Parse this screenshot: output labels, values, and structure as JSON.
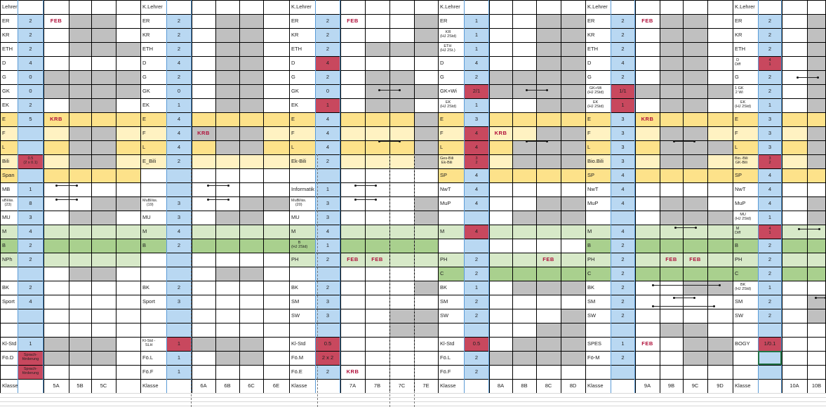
{
  "colors": {
    "blue": "#b9d8f2",
    "grey": "#c0c0c0",
    "red": "#c8485e",
    "orange": "#fde28a",
    "cream": "#fff2c2",
    "green": "#a9d08e",
    "lightgreen": "#d7e9c8",
    "white": "#ffffff"
  },
  "header_label": "K.Lehrer",
  "class_row_label": "Klasse",
  "blocks": [
    {
      "id": "5",
      "header": "Lehrer",
      "classes": [
        "5A",
        "5B",
        "5C",
        ""
      ],
      "rows": [
        {
          "subject": "ER",
          "hours": "2",
          "notes": [
            "FEB",
            "",
            "",
            "",
            ""
          ]
        },
        {
          "subject": "KR",
          "hours": "2"
        },
        {
          "subject": "ETH",
          "hours": "2"
        },
        {
          "subject": "D",
          "hours": "4"
        },
        {
          "subject": "G",
          "hours": "0"
        },
        {
          "subject": "GK",
          "hours": "0"
        },
        {
          "subject": "EK",
          "hours": "2"
        },
        {
          "subject": "E",
          "hours": "5",
          "notes": [
            "KRB",
            "",
            "",
            "",
            ""
          ]
        },
        {
          "subject": "F",
          "hours": ""
        },
        {
          "subject": "L",
          "hours": ""
        },
        {
          "subject": "Bili",
          "hours": "0.5\n(2 x 0.1)"
        },
        {
          "subject": "Span",
          "hours": ""
        },
        {
          "subject": "MB",
          "hours": "1"
        },
        {
          "subject": "uBl/äs.\n(23)",
          "hours": "8"
        },
        {
          "subject": "MU",
          "hours": "3"
        },
        {
          "subject": "M",
          "hours": "4"
        },
        {
          "subject": "B",
          "hours": "2"
        },
        {
          "subject": "NPh",
          "hours": "2"
        },
        {
          "subject": "",
          "hours": ""
        },
        {
          "subject": "BK",
          "hours": "2"
        },
        {
          "subject": "Sport",
          "hours": "4"
        },
        {
          "subject": "",
          "hours": ""
        },
        {
          "subject": "",
          "hours": ""
        },
        {
          "subject": "Kl-Std",
          "hours": "1"
        },
        {
          "subject": "Fö.D",
          "hours": "Sprach-\nförderung"
        },
        {
          "subject": "",
          "hours": "Sprach-\nförderung"
        }
      ]
    },
    {
      "id": "6",
      "header": "K.Lehrer",
      "classes": [
        "6A",
        "6B",
        "6C",
        "6E"
      ],
      "rows": [
        {
          "subject": "ER",
          "hours": "2"
        },
        {
          "subject": "KR",
          "hours": "2"
        },
        {
          "subject": "ETH",
          "hours": "2"
        },
        {
          "subject": "D",
          "hours": "4"
        },
        {
          "subject": "G",
          "hours": "2"
        },
        {
          "subject": "GK",
          "hours": "0"
        },
        {
          "subject": "EK",
          "hours": "1"
        },
        {
          "subject": "E",
          "hours": "4"
        },
        {
          "subject": "F",
          "hours": "4",
          "notes": [
            "KRB",
            "",
            "",
            "",
            ""
          ]
        },
        {
          "subject": "L",
          "hours": "4"
        },
        {
          "subject": "E_Bili",
          "hours": "2"
        },
        {
          "subject": "",
          "hours": ""
        },
        {
          "subject": "",
          "hours": ""
        },
        {
          "subject": "MuBl/äs.\n(19)",
          "hours": "3"
        },
        {
          "subject": "MU",
          "hours": "3"
        },
        {
          "subject": "M",
          "hours": "4"
        },
        {
          "subject": "B",
          "hours": "2"
        },
        {
          "subject": "",
          "hours": ""
        },
        {
          "subject": "",
          "hours": ""
        },
        {
          "subject": "BK",
          "hours": "2"
        },
        {
          "subject": "Sport",
          "hours": "3"
        },
        {
          "subject": "",
          "hours": ""
        },
        {
          "subject": "",
          "hours": ""
        },
        {
          "subject": "Kl-Std -\nSLH",
          "hours": "1"
        },
        {
          "subject": "Fö.L",
          "hours": "1"
        },
        {
          "subject": "Fö.F",
          "hours": "1"
        }
      ]
    },
    {
      "id": "7",
      "header": "K.Lehrer",
      "classes": [
        "7A",
        "7B",
        "7C",
        "7E"
      ],
      "rows": [
        {
          "subject": "ER",
          "hours": "2",
          "notes": [
            "FEB",
            "",
            "",
            "",
            ""
          ]
        },
        {
          "subject": "KR",
          "hours": "2"
        },
        {
          "subject": "ETH",
          "hours": "2"
        },
        {
          "subject": "D",
          "hours": "4"
        },
        {
          "subject": "G",
          "hours": "2"
        },
        {
          "subject": "GK",
          "hours": "0"
        },
        {
          "subject": "EK",
          "hours": "1"
        },
        {
          "subject": "E",
          "hours": "4"
        },
        {
          "subject": "F",
          "hours": "4"
        },
        {
          "subject": "L",
          "hours": "4"
        },
        {
          "subject": "Ek-Bili",
          "hours": "2"
        },
        {
          "subject": "",
          "hours": ""
        },
        {
          "subject": "Informatik",
          "hours": "1"
        },
        {
          "subject": "MuBl/äs.\n(20)",
          "hours": "3"
        },
        {
          "subject": "MU",
          "hours": "3"
        },
        {
          "subject": "M",
          "hours": "4"
        },
        {
          "subject": "B\n(HJ 2Std)",
          "hours": "1"
        },
        {
          "subject": "PH",
          "hours": "2",
          "notes": [
            "FEB",
            "FEB",
            "",
            "",
            ""
          ]
        },
        {
          "subject": "",
          "hours": ""
        },
        {
          "subject": "BK",
          "hours": "2"
        },
        {
          "subject": "SM",
          "hours": "3"
        },
        {
          "subject": "SW",
          "hours": "3"
        },
        {
          "subject": "",
          "hours": ""
        },
        {
          "subject": "Kl-Std",
          "hours": "0.5"
        },
        {
          "subject": "Fö.M",
          "hours": "2 x 2"
        },
        {
          "subject": "Fö.E",
          "hours": "2",
          "notes": [
            "KRB",
            "",
            "",
            "",
            ""
          ]
        }
      ]
    },
    {
      "id": "8",
      "header": "K.Lehrer",
      "classes": [
        "8A",
        "8B",
        "8C",
        "8D"
      ],
      "rows": [
        {
          "subject": "ER",
          "hours": "1"
        },
        {
          "subject": "KR\n(HJ 2Std)",
          "hours": "1"
        },
        {
          "subject": "ETH\n(HJ 2St.)",
          "hours": "1"
        },
        {
          "subject": "D",
          "hours": "4"
        },
        {
          "subject": "G",
          "hours": "2"
        },
        {
          "subject": "GK+Wi",
          "hours": "2/1"
        },
        {
          "subject": "EK\n(HJ 2Std)",
          "hours": "1"
        },
        {
          "subject": "E",
          "hours": "3"
        },
        {
          "subject": "F",
          "hours": "4",
          "notes": [
            "KRB",
            "",
            "",
            "",
            ""
          ]
        },
        {
          "subject": "L",
          "hours": "4"
        },
        {
          "subject": "Ges-Bili\nEk-Bili",
          "hours": "3\n2"
        },
        {
          "subject": "SP",
          "hours": "4"
        },
        {
          "subject": "NwT",
          "hours": "4"
        },
        {
          "subject": "MuP",
          "hours": "4"
        },
        {
          "subject": "",
          "hours": ""
        },
        {
          "subject": "M",
          "hours": "4"
        },
        {
          "subject": "",
          "hours": ""
        },
        {
          "subject": "PH",
          "hours": "2",
          "notes": [
            "",
            "",
            "FEB",
            "",
            ""
          ]
        },
        {
          "subject": "C",
          "hours": "2"
        },
        {
          "subject": "BK",
          "hours": "1"
        },
        {
          "subject": "SM",
          "hours": "2"
        },
        {
          "subject": "SW",
          "hours": "2"
        },
        {
          "subject": "",
          "hours": ""
        },
        {
          "subject": "Kl-Std",
          "hours": "0.5"
        },
        {
          "subject": "Fö.L",
          "hours": "2"
        },
        {
          "subject": "Fö.F",
          "hours": "2"
        }
      ]
    },
    {
      "id": "9",
      "header": "K.Lehrer",
      "classes": [
        "9A",
        "9B",
        "9C",
        "9D"
      ],
      "rows": [
        {
          "subject": "ER",
          "hours": "2",
          "notes": [
            "FEB",
            "",
            "",
            "",
            ""
          ]
        },
        {
          "subject": "KR",
          "hours": "2"
        },
        {
          "subject": "ETH",
          "hours": "2"
        },
        {
          "subject": "D",
          "hours": "4"
        },
        {
          "subject": "G",
          "hours": "2"
        },
        {
          "subject": "GK+Wi\n(HJ 2Std)",
          "hours": "1/1"
        },
        {
          "subject": "EK\n(HJ 2Std)",
          "hours": "1"
        },
        {
          "subject": "E",
          "hours": "3",
          "notes": [
            "KRB",
            "",
            "",
            "",
            ""
          ]
        },
        {
          "subject": "F",
          "hours": "3"
        },
        {
          "subject": "L",
          "hours": "3"
        },
        {
          "subject": "Bio.Bili",
          "hours": "3"
        },
        {
          "subject": "SP",
          "hours": "4"
        },
        {
          "subject": "NwT",
          "hours": "4"
        },
        {
          "subject": "MuP",
          "hours": "4"
        },
        {
          "subject": "",
          "hours": ""
        },
        {
          "subject": "M",
          "hours": "4"
        },
        {
          "subject": "B",
          "hours": "2"
        },
        {
          "subject": "PH",
          "hours": "2",
          "notes": [
            "",
            "FEB",
            "FEB",
            "",
            ""
          ]
        },
        {
          "subject": "C",
          "hours": "2"
        },
        {
          "subject": "BK",
          "hours": "2"
        },
        {
          "subject": "SM",
          "hours": "2"
        },
        {
          "subject": "SW",
          "hours": "2"
        },
        {
          "subject": "",
          "hours": ""
        },
        {
          "subject": "SPES",
          "hours": "1",
          "notes": [
            "FEB",
            "",
            "",
            "",
            ""
          ]
        },
        {
          "subject": "Fö-M",
          "hours": "2"
        },
        {
          "subject": "",
          "hours": ""
        }
      ]
    },
    {
      "id": "10",
      "header": "K.Lehrer",
      "classes": [
        "10A",
        "10B"
      ],
      "rows": [
        {
          "subject": "ER",
          "hours": "2"
        },
        {
          "subject": "KR",
          "hours": "2"
        },
        {
          "subject": "ETH",
          "hours": "2"
        },
        {
          "subject": "D\nDiff",
          "hours": "4\n1"
        },
        {
          "subject": "G",
          "hours": "2"
        },
        {
          "subject": "1 GK\n2 Wi",
          "hours": "2"
        },
        {
          "subject": "EK\n(HJ 2Std)",
          "hours": "1"
        },
        {
          "subject": "E",
          "hours": "3"
        },
        {
          "subject": "F",
          "hours": "3"
        },
        {
          "subject": "L",
          "hours": "3"
        },
        {
          "subject": "Bio.-Bili\nGK-Bili",
          "hours": "3\n2"
        },
        {
          "subject": "SP",
          "hours": "4"
        },
        {
          "subject": "NwT",
          "hours": "4"
        },
        {
          "subject": "MuP",
          "hours": "4"
        },
        {
          "subject": "MU\n(HJ 2Std)",
          "hours": "1"
        },
        {
          "subject": "M\nDiff",
          "hours": "4\n1"
        },
        {
          "subject": "B",
          "hours": "2"
        },
        {
          "subject": "PH",
          "hours": "2"
        },
        {
          "subject": "C",
          "hours": "2"
        },
        {
          "subject": "BK\n(HJ 2Std)",
          "hours": "1"
        },
        {
          "subject": "SM",
          "hours": "2"
        },
        {
          "subject": "SW",
          "hours": "2"
        },
        {
          "subject": "",
          "hours": ""
        },
        {
          "subject": "BOGY",
          "hours": "1/0.1"
        },
        {
          "subject": "",
          "hours": ""
        },
        {
          "subject": "",
          "hours": ""
        }
      ]
    }
  ]
}
